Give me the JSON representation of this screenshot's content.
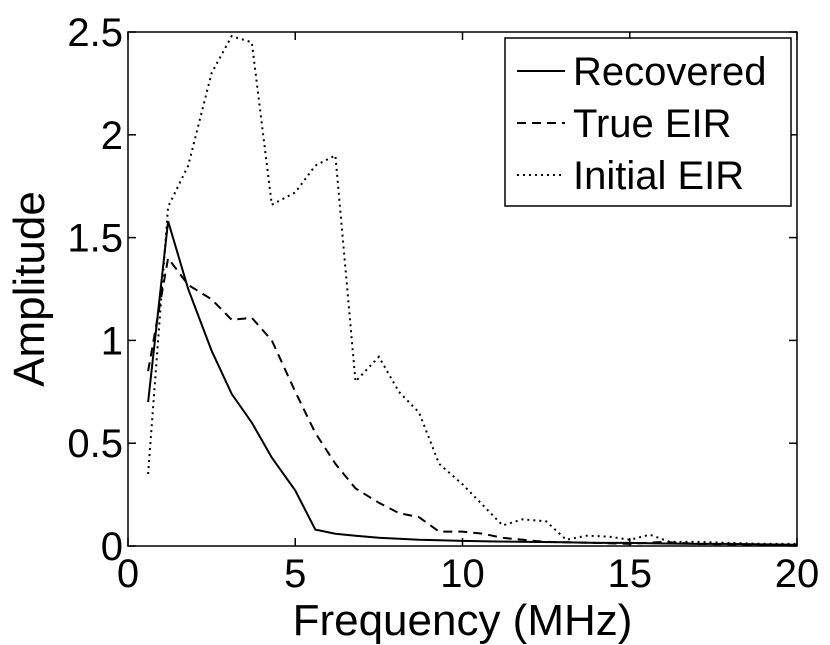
{
  "chart_data": {
    "type": "line",
    "title": "",
    "xlabel": "Frequency (MHz)",
    "ylabel": "Amplitude",
    "xlim": [
      0,
      20
    ],
    "ylim": [
      0,
      2.5
    ],
    "xticks": [
      0,
      5,
      10,
      15,
      20
    ],
    "xtick_labels": [
      "0",
      "5",
      "10",
      "15",
      "20"
    ],
    "yticks": [
      0,
      0.5,
      1,
      1.5,
      2,
      2.5
    ],
    "ytick_labels": [
      "0",
      "0.5",
      "1",
      "1.5",
      "2",
      "2.5"
    ],
    "grid": false,
    "legend_position": "top-right",
    "series": [
      {
        "name": "Recovered",
        "style": "solid",
        "color": "#000000",
        "x": [
          0.6,
          1.2,
          1.8,
          2.5,
          3.1,
          3.7,
          4.3,
          5.0,
          5.6,
          6.2,
          6.8,
          7.5,
          8.1,
          8.7,
          9.3,
          10.0,
          11.0,
          12.0,
          13.0,
          14.0,
          15.0,
          16.0,
          17.0,
          18.0,
          19.0,
          20.0
        ],
        "y": [
          0.7,
          1.58,
          1.25,
          0.95,
          0.74,
          0.6,
          0.43,
          0.27,
          0.08,
          0.06,
          0.05,
          0.04,
          0.035,
          0.03,
          0.028,
          0.025,
          0.022,
          0.02,
          0.018,
          0.015,
          0.015,
          0.012,
          0.01,
          0.01,
          0.008,
          0.006
        ]
      },
      {
        "name": "True EIR",
        "style": "dashed",
        "color": "#000000",
        "x": [
          0.6,
          1.2,
          1.8,
          2.5,
          3.1,
          3.7,
          4.3,
          5.0,
          5.6,
          6.2,
          6.8,
          7.5,
          8.1,
          8.7,
          9.3,
          10.0,
          10.6,
          11.2,
          11.8,
          12.5,
          13.1,
          14.0,
          15.0,
          16.0,
          17.0,
          18.0,
          19.0,
          20.0
        ],
        "y": [
          0.85,
          1.4,
          1.27,
          1.2,
          1.1,
          1.11,
          1.0,
          0.75,
          0.55,
          0.4,
          0.28,
          0.21,
          0.16,
          0.14,
          0.07,
          0.07,
          0.06,
          0.04,
          0.03,
          0.02,
          0.018,
          0.015,
          0.01,
          0.02,
          0.01,
          0.008,
          0.006,
          0.005
        ]
      },
      {
        "name": "Initial EIR",
        "style": "dotted",
        "color": "#000000",
        "x": [
          0.6,
          1.2,
          1.8,
          2.5,
          3.1,
          3.7,
          4.3,
          5.0,
          5.6,
          6.2,
          6.8,
          7.5,
          8.1,
          8.7,
          9.3,
          10.0,
          10.6,
          11.2,
          11.8,
          12.5,
          13.1,
          13.7,
          14.4,
          15.0,
          15.6,
          16.2,
          17.0,
          18.0,
          19.0,
          20.0
        ],
        "y": [
          0.35,
          1.65,
          1.85,
          2.3,
          2.48,
          2.45,
          1.66,
          1.72,
          1.85,
          1.9,
          0.8,
          0.92,
          0.75,
          0.65,
          0.4,
          0.3,
          0.2,
          0.1,
          0.13,
          0.12,
          0.03,
          0.05,
          0.045,
          0.03,
          0.055,
          0.02,
          0.02,
          0.015,
          0.01,
          0.01
        ]
      }
    ]
  }
}
